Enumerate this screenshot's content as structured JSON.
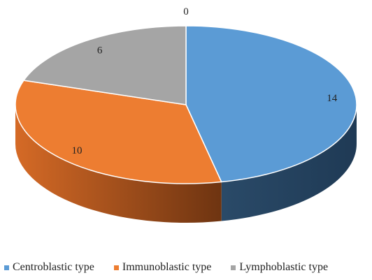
{
  "chart_data": {
    "type": "pie",
    "style": "3d",
    "categories": [
      "Centroblastic type",
      "Immunoblastic type",
      "Lymphoblastic type",
      ""
    ],
    "values": [
      14,
      10,
      6,
      0
    ],
    "value_labels": [
      "14",
      "10",
      "6",
      "0"
    ],
    "colors": [
      "#5b9bd5",
      "#ed7d31",
      "#a5a5a5",
      "#ffc000"
    ],
    "title": "",
    "legend": {
      "placement": "bottom",
      "items": [
        "Centroblastic type",
        "Immunoblastic type",
        "Lymphoblastic type"
      ]
    }
  }
}
